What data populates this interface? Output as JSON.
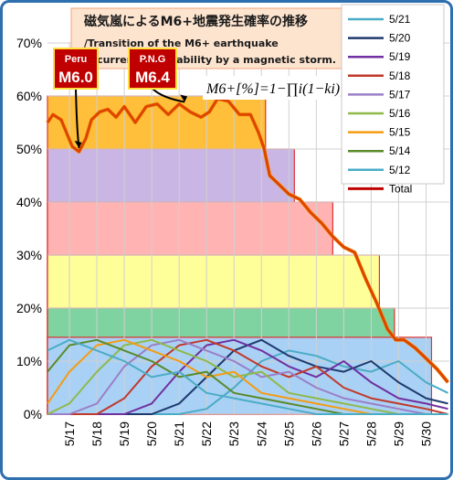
{
  "chart_data": {
    "type": "line",
    "title": "磁気嵐によるM6+地震発生確率の推移",
    "subtitle_lines": [
      "/Transition of the M6+ earthquake",
      "occurrence probability by a magnetic storm."
    ],
    "formula": "M6+[%]=1−∏i(1−ki)",
    "ylim": [
      0,
      70
    ],
    "y_ticks": [
      "0%",
      "10%",
      "20%",
      "30%",
      "40%",
      "50%",
      "60%",
      "70%"
    ],
    "x_ticks": [
      "5/17",
      "5/18",
      "5/19",
      "5/20",
      "5/21",
      "5/22",
      "5/23",
      "5/24",
      "5/25",
      "5/26",
      "5/27",
      "5/28",
      "5/29",
      "5/30"
    ],
    "xlim": [
      16.2,
      30.85
    ],
    "grid": true,
    "legend_position": "top-right",
    "bands": [
      {
        "top": 60,
        "start": 16.2,
        "end": 24.15,
        "color": "#ffbf3a"
      },
      {
        "top": 50,
        "start": 16.2,
        "end": 25.2,
        "color": "#c9b6e4"
      },
      {
        "top": 40,
        "start": 16.2,
        "end": 26.6,
        "color": "#ffb3b3"
      },
      {
        "top": 30,
        "start": 16.2,
        "end": 28.3,
        "color": "#ffff99"
      },
      {
        "top": 20,
        "start": 16.2,
        "end": 28.85,
        "color": "#7fd3a0"
      },
      {
        "top": 14.5,
        "start": 16.2,
        "end": 30.2,
        "color": "#a9d1f5"
      }
    ],
    "series": [
      {
        "name": "5/21",
        "color": "#4bacc6",
        "x": [
          16.2,
          17,
          18,
          19,
          20,
          21,
          22,
          23,
          24,
          25,
          26,
          27,
          28,
          29,
          30,
          30.8
        ],
        "y": [
          0,
          0,
          0,
          0,
          0,
          0,
          1,
          5,
          10,
          12,
          11,
          9,
          8,
          10,
          6,
          4
        ]
      },
      {
        "name": "5/20",
        "color": "#1f3a6e",
        "x": [
          16.2,
          17,
          18,
          19,
          20,
          21,
          22,
          23,
          24,
          25,
          26,
          27,
          28,
          29,
          30,
          30.8
        ],
        "y": [
          0,
          0,
          0,
          0,
          0,
          2,
          7,
          12,
          14,
          11,
          9,
          8,
          10,
          6,
          3,
          2
        ]
      },
      {
        "name": "5/19",
        "color": "#7030a0",
        "x": [
          16.2,
          17,
          18,
          19,
          20,
          21,
          22,
          23,
          24,
          25,
          26,
          27,
          28,
          29,
          30,
          30.8
        ],
        "y": [
          0,
          0,
          0,
          0,
          2,
          8,
          13,
          14,
          12,
          9,
          7,
          10,
          6,
          3,
          2,
          1
        ]
      },
      {
        "name": "5/18",
        "color": "#c0392b",
        "x": [
          16.2,
          17,
          18,
          19,
          20,
          21,
          22,
          23,
          24,
          25,
          26,
          27,
          28,
          29,
          30,
          30.8
        ],
        "y": [
          0,
          0,
          0,
          3,
          9,
          13,
          14,
          12,
          9,
          7,
          9,
          5,
          3,
          2,
          1,
          0
        ]
      },
      {
        "name": "5/17",
        "color": "#9b7fc7",
        "x": [
          16.2,
          17,
          18,
          19,
          20,
          21,
          22,
          23,
          24,
          25,
          26,
          27,
          28,
          29,
          30,
          30.8
        ],
        "y": [
          0,
          0,
          2,
          9,
          13,
          14,
          12,
          10,
          7,
          8,
          5,
          3,
          2,
          1,
          0,
          0
        ]
      },
      {
        "name": "5/16",
        "color": "#8fb94b",
        "x": [
          16.2,
          17,
          18,
          19,
          20,
          21,
          22,
          23,
          24,
          25,
          26,
          27,
          28,
          29,
          30,
          30.8
        ],
        "y": [
          0,
          2,
          8,
          13,
          14,
          12,
          10,
          7,
          8,
          4,
          3,
          2,
          1,
          0,
          0,
          0
        ]
      },
      {
        "name": "5/15",
        "color": "#f39c12",
        "x": [
          16.2,
          17,
          18,
          19,
          20,
          21,
          22,
          23,
          24,
          25,
          26,
          27,
          28,
          29,
          30,
          30.8
        ],
        "y": [
          2,
          8,
          13,
          14,
          12,
          10,
          7,
          8,
          4,
          3,
          2,
          1,
          0,
          0,
          0,
          0
        ]
      },
      {
        "name": "5/14",
        "color": "#5a8a2a",
        "x": [
          16.2,
          17,
          18,
          19,
          20,
          21,
          22,
          23,
          24,
          25,
          26,
          27,
          28,
          29,
          30,
          30.8
        ],
        "y": [
          8,
          13,
          14,
          12,
          10,
          7,
          8,
          4,
          3,
          2,
          1,
          0,
          0,
          0,
          0,
          0
        ]
      },
      {
        "name": "5/12",
        "color": "#4bacc6",
        "x": [
          16.2,
          17,
          18,
          19,
          20,
          21,
          22,
          23,
          24,
          25,
          26,
          27,
          28,
          29,
          30,
          30.8
        ],
        "y": [
          12,
          14,
          12,
          10,
          7,
          8,
          4,
          3,
          2,
          1,
          0,
          0,
          0,
          0,
          0,
          0
        ]
      },
      {
        "name": "Total",
        "color": "#c00000",
        "total": true,
        "x": [
          16.2,
          16.4,
          16.7,
          16.9,
          17.1,
          17.35,
          17.6,
          17.8,
          18.1,
          18.4,
          18.7,
          19,
          19.4,
          19.8,
          20.2,
          20.6,
          21,
          21.4,
          21.8,
          22.1,
          22.4,
          22.8,
          23.2,
          23.6,
          23.9,
          24.1,
          24.3,
          24.6,
          25,
          25.4,
          25.8,
          26.2,
          26.6,
          27,
          27.4,
          27.8,
          28.2,
          28.6,
          28.9,
          29.2,
          29.6,
          30,
          30.4,
          30.8
        ],
        "y": [
          55,
          56.5,
          55.5,
          53,
          50.5,
          49.5,
          52,
          55.5,
          57,
          57.5,
          56,
          58,
          55,
          58,
          58.5,
          56.5,
          58.5,
          57,
          56,
          57,
          59.5,
          59,
          56.5,
          56.5,
          53,
          50,
          45,
          43.5,
          41.5,
          40.5,
          38,
          36,
          33.5,
          31.5,
          30.5,
          25.5,
          21,
          16,
          14,
          14,
          12.5,
          10.5,
          8.5,
          6
        ]
      }
    ],
    "annotations": [
      {
        "label_small": "Peru",
        "label_big": "M6.0",
        "x": 17.35,
        "y": 49.5
      },
      {
        "label_small": "P.N.G",
        "label_big": "M6.4",
        "x": 21.2,
        "y": 58.2
      }
    ]
  }
}
